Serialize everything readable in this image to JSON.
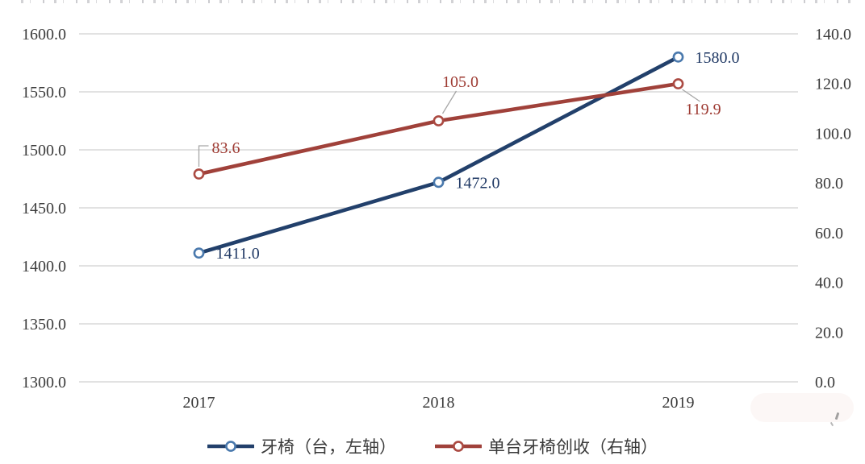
{
  "chart_data": {
    "type": "line",
    "categories": [
      "2017",
      "2018",
      "2019"
    ],
    "series": [
      {
        "name": "牙椅（台，左轴）",
        "axis": "left",
        "values": [
          1411.0,
          1472.0,
          1580.0
        ],
        "data_labels": [
          "1411.0",
          "1472.0",
          "1580.0"
        ],
        "line_color": "#22406b",
        "marker_color": "#4a79ad",
        "label_color": "#1f3864"
      },
      {
        "name": "单台牙椅创收（右轴）",
        "axis": "right",
        "values": [
          83.6,
          105.0,
          119.9
        ],
        "data_labels": [
          "83.6",
          "105.0",
          "119.9"
        ],
        "line_color": "#a0413a",
        "marker_color": "#ab4a42",
        "label_color": "#9e3b33"
      }
    ],
    "left_axis": {
      "min": 1300,
      "max": 1600,
      "step": 50,
      "tick_labels": [
        "1600.0",
        "1550.0",
        "1500.0",
        "1450.0",
        "1400.0",
        "1350.0",
        "1300.0"
      ]
    },
    "right_axis": {
      "min": 0,
      "max": 140,
      "step": 20,
      "tick_labels": [
        "140.0",
        "120.0",
        "100.0",
        "80.0",
        "60.0",
        "40.0",
        "20.0",
        "0.0"
      ]
    },
    "title": "",
    "xlabel": "",
    "ylabel": "",
    "grid": "horizontal",
    "legend_position": "bottom",
    "gridline_color": "#d8d8d8",
    "axis_text_color": "#3a3a3a",
    "leader_line_color": "#a6a6a6"
  }
}
